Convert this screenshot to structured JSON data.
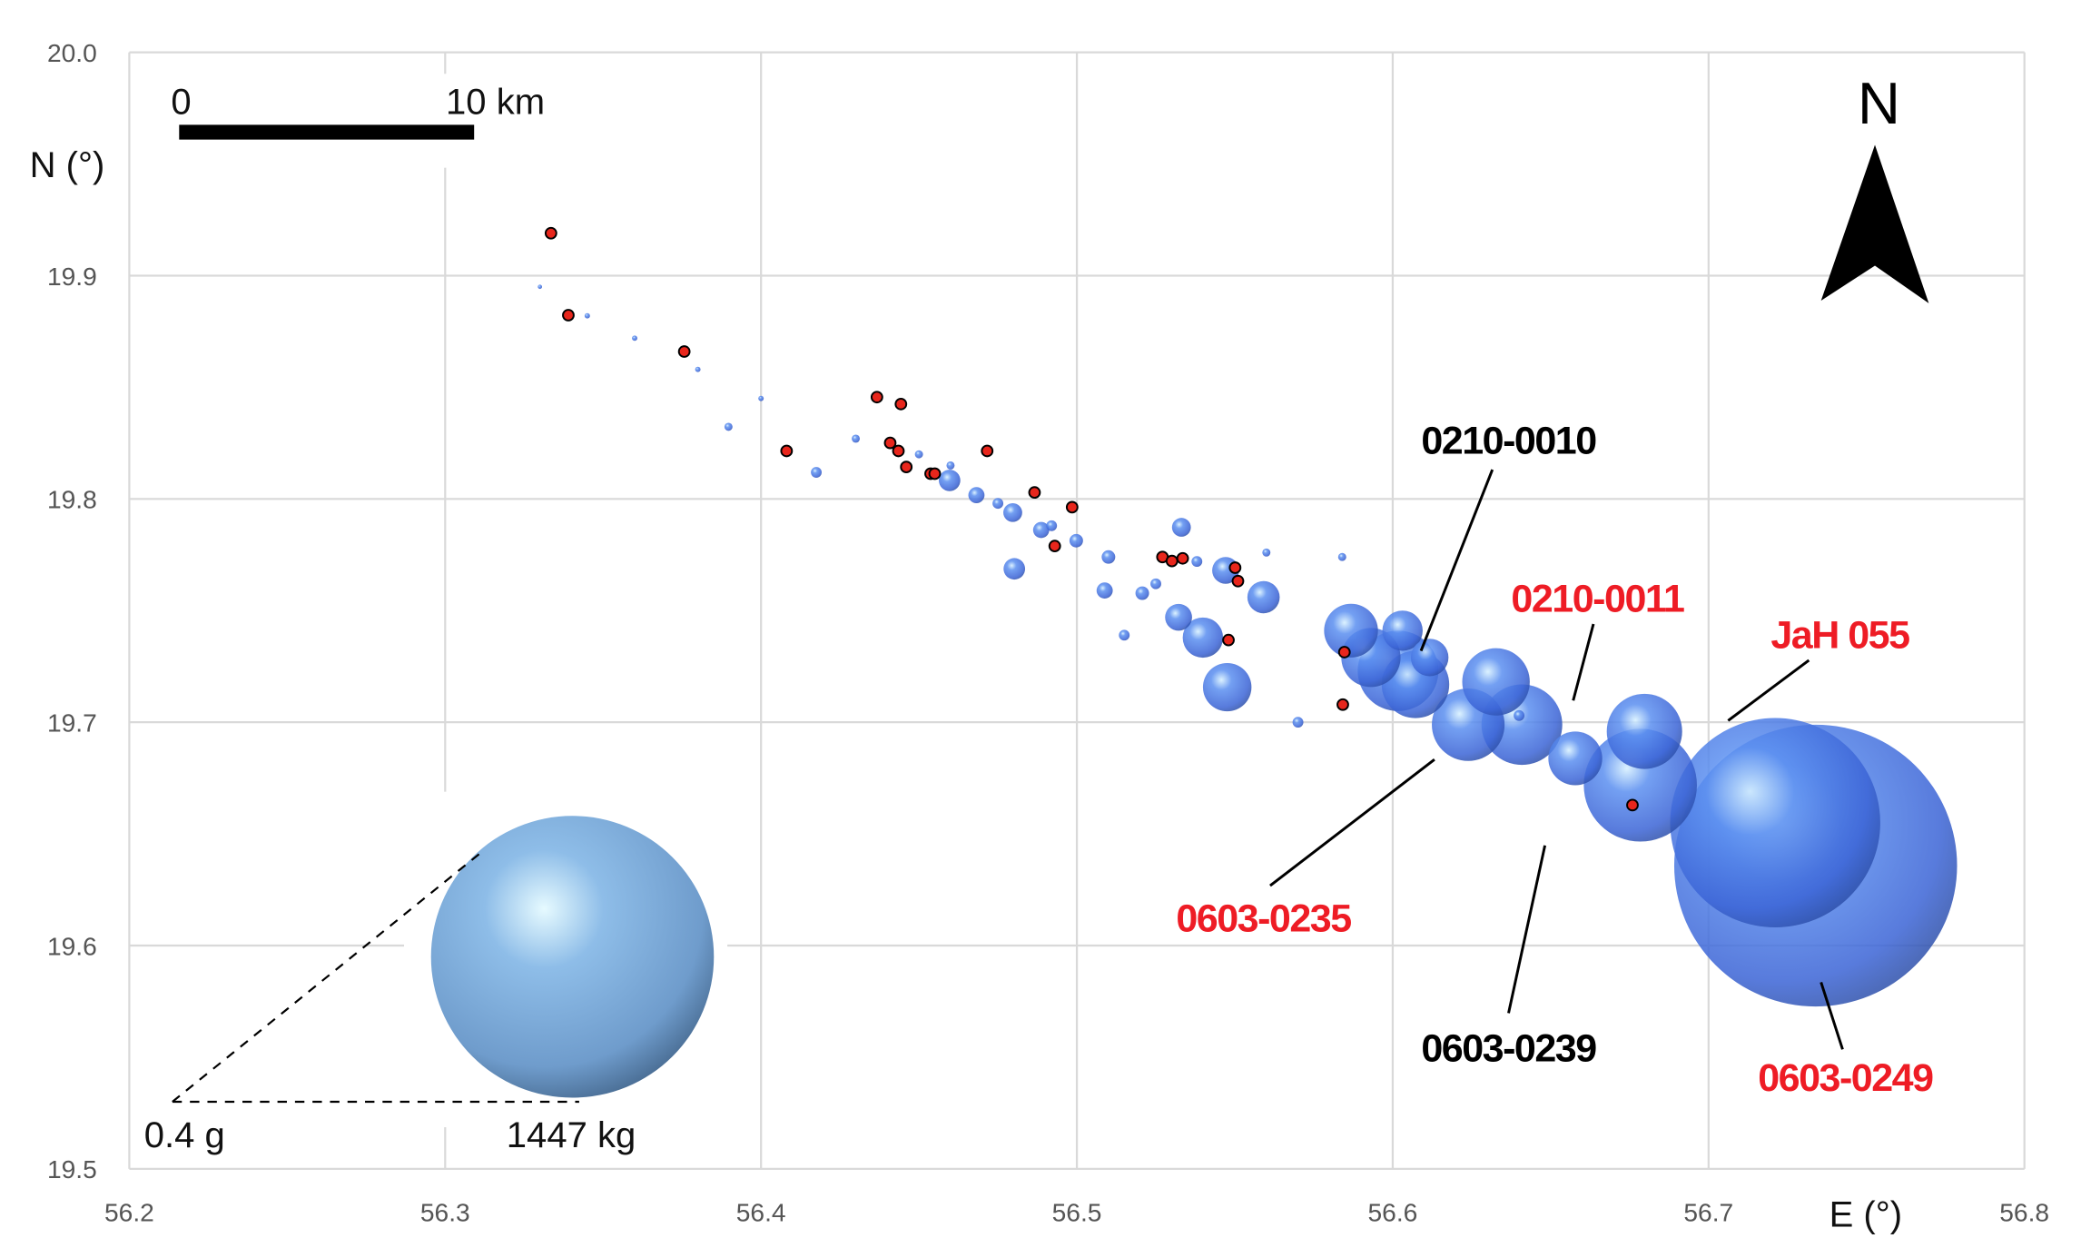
{
  "chart_data": {
    "type": "scatter",
    "title": "",
    "xlabel": "E (°)",
    "ylabel": "N (°)",
    "xlim": [
      56.2,
      56.8
    ],
    "ylim": [
      19.5,
      20.0
    ],
    "grid": true,
    "x_ticks": [
      "56.2",
      "56.3",
      "56.4",
      "56.5",
      "56.6",
      "56.7",
      "56.8"
    ],
    "y_ticks": [
      "19.5",
      "19.6",
      "19.7",
      "19.8",
      "19.9",
      "20.0"
    ],
    "colors": {
      "bubble": "#3f6fe0",
      "highlight": "#cfe6ff",
      "marker": "#e8261c",
      "label_red": "#ee1c25",
      "label_black": "#000000",
      "legend_sphere": "#86b2e0"
    },
    "bubble_size_meaning": "mass (kg)",
    "bubbles": [
      {
        "x": 56.7339,
        "y": 19.6358,
        "mass": 1447
      },
      {
        "x": 56.7211,
        "y": 19.655,
        "mass": 593
      },
      {
        "x": 56.6784,
        "y": 19.6718,
        "mass": 92.6
      },
      {
        "x": 56.6797,
        "y": 19.6959,
        "mass": 27.4
      },
      {
        "x": 56.6578,
        "y": 19.6838,
        "mass": 10.0
      },
      {
        "x": 56.6327,
        "y": 19.7181,
        "mass": 19.7
      },
      {
        "x": 56.6409,
        "y": 19.6989,
        "mass": 33.7
      },
      {
        "x": 56.6239,
        "y": 19.6989,
        "mass": 24.6
      },
      {
        "x": 56.6072,
        "y": 19.7169,
        "mass": 19.7
      },
      {
        "x": 56.6017,
        "y": 19.723,
        "mass": 33.7
      },
      {
        "x": 56.5931,
        "y": 19.729,
        "mass": 13.3
      },
      {
        "x": 56.5868,
        "y": 19.741,
        "mass": 10.0
      },
      {
        "x": 56.6031,
        "y": 19.741,
        "mass": 4.2
      },
      {
        "x": 56.6117,
        "y": 19.729,
        "mass": 3.4
      },
      {
        "x": 56.5476,
        "y": 19.7157,
        "mass": 7.3
      },
      {
        "x": 56.5399,
        "y": 19.7379,
        "mass": 4.2
      },
      {
        "x": 56.5322,
        "y": 19.747,
        "mass": 1.25
      },
      {
        "x": 56.5591,
        "y": 19.756,
        "mass": 2.16
      },
      {
        "x": 56.5471,
        "y": 19.768,
        "mass": 1.25
      },
      {
        "x": 56.5331,
        "y": 19.7873,
        "mass": 0.43
      },
      {
        "x": 56.4802,
        "y": 19.7687,
        "mass": 0.64
      },
      {
        "x": 56.5088,
        "y": 19.759,
        "mass": 0.27
      },
      {
        "x": 56.5207,
        "y": 19.7578,
        "mass": 0.16
      },
      {
        "x": 56.4597,
        "y": 19.8083,
        "mass": 0.64
      },
      {
        "x": 56.4682,
        "y": 19.8017,
        "mass": 0.27
      },
      {
        "x": 56.4797,
        "y": 19.7939,
        "mass": 0.43
      },
      {
        "x": 56.4887,
        "y": 19.7861,
        "mass": 0.27
      },
      {
        "x": 56.4175,
        "y": 19.8119,
        "mass": 0.08
      },
      {
        "x": 56.3897,
        "y": 19.8323,
        "mass": 0.034
      },
      {
        "x": 56.4998,
        "y": 19.7813,
        "mass": 0.16
      },
      {
        "x": 56.51,
        "y": 19.774,
        "mass": 0.16
      },
      {
        "x": 56.525,
        "y": 19.762,
        "mass": 0.08
      },
      {
        "x": 56.538,
        "y": 19.772,
        "mass": 0.08
      },
      {
        "x": 56.492,
        "y": 19.788,
        "mass": 0.08
      },
      {
        "x": 56.475,
        "y": 19.798,
        "mass": 0.08
      },
      {
        "x": 56.45,
        "y": 19.82,
        "mass": 0.034
      },
      {
        "x": 56.43,
        "y": 19.827,
        "mass": 0.034
      },
      {
        "x": 56.46,
        "y": 19.815,
        "mass": 0.034
      },
      {
        "x": 56.4,
        "y": 19.845,
        "mass": 0.01
      },
      {
        "x": 56.38,
        "y": 19.858,
        "mass": 0.01
      },
      {
        "x": 56.36,
        "y": 19.872,
        "mass": 0.01
      },
      {
        "x": 56.345,
        "y": 19.882,
        "mass": 0.01
      },
      {
        "x": 56.33,
        "y": 19.895,
        "mass": 0.005
      },
      {
        "x": 56.56,
        "y": 19.776,
        "mass": 0.034
      },
      {
        "x": 56.584,
        "y": 19.774,
        "mass": 0.034
      },
      {
        "x": 56.57,
        "y": 19.7,
        "mass": 0.08
      },
      {
        "x": 56.515,
        "y": 19.739,
        "mass": 0.08
      },
      {
        "x": 56.64,
        "y": 19.703,
        "mass": 0.08
      }
    ],
    "markers": [
      {
        "x": 56.3335,
        "y": 19.919
      },
      {
        "x": 56.339,
        "y": 19.8823
      },
      {
        "x": 56.3757,
        "y": 19.866
      },
      {
        "x": 56.4367,
        "y": 19.8456
      },
      {
        "x": 56.4443,
        "y": 19.8425
      },
      {
        "x": 56.4081,
        "y": 19.8215
      },
      {
        "x": 56.4409,
        "y": 19.8251
      },
      {
        "x": 56.4435,
        "y": 19.8215
      },
      {
        "x": 56.446,
        "y": 19.8143
      },
      {
        "x": 56.4537,
        "y": 19.8113
      },
      {
        "x": 56.455,
        "y": 19.8113
      },
      {
        "x": 56.4716,
        "y": 19.8215
      },
      {
        "x": 56.4866,
        "y": 19.8029
      },
      {
        "x": 56.4985,
        "y": 19.7963
      },
      {
        "x": 56.493,
        "y": 19.7789
      },
      {
        "x": 56.5271,
        "y": 19.774
      },
      {
        "x": 56.5301,
        "y": 19.7722
      },
      {
        "x": 56.5335,
        "y": 19.7734
      },
      {
        "x": 56.5501,
        "y": 19.7692
      },
      {
        "x": 56.551,
        "y": 19.7632
      },
      {
        "x": 56.548,
        "y": 19.7368
      },
      {
        "x": 56.5847,
        "y": 19.7314
      },
      {
        "x": 56.5842,
        "y": 19.7079
      },
      {
        "x": 56.6759,
        "y": 19.6629
      }
    ],
    "annotations": [
      {
        "text": "0210-0010",
        "color": "black"
      },
      {
        "text": "0210-0011",
        "color": "red"
      },
      {
        "text": "JaH 055",
        "color": "red"
      },
      {
        "text": "0603-0235",
        "color": "red"
      },
      {
        "text": "0603-0239",
        "color": "black"
      },
      {
        "text": "0603-0249",
        "color": "red"
      }
    ],
    "scale_bar": {
      "start": "0",
      "end": "10 km"
    },
    "north_arrow": "N",
    "size_legend": {
      "min": "0.4 g",
      "max": "1447 kg"
    }
  }
}
